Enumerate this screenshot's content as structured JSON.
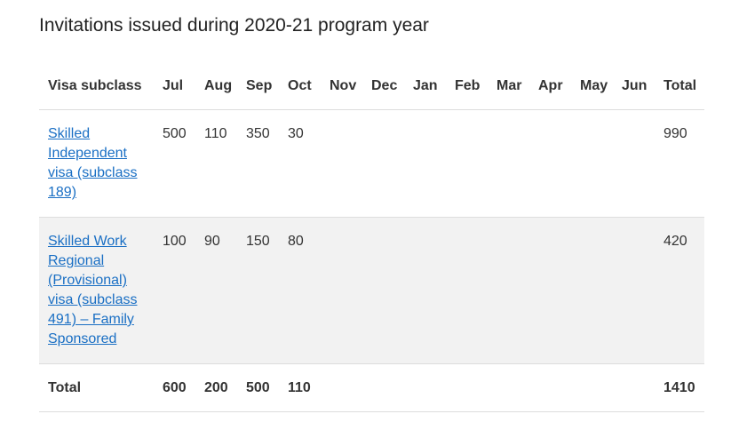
{
  "title": "Invitations issued during 2020-21 program year",
  "table": {
    "header": [
      "Visa subclass",
      "Jul",
      "Aug",
      "Sep",
      "Oct",
      "Nov",
      "Dec",
      "Jan",
      "Feb",
      "Mar",
      "Apr",
      "May",
      "Jun",
      "Total"
    ],
    "rows": [
      {
        "visa": "Skilled Independent visa (subclass 189)",
        "values": [
          500,
          110,
          350,
          30,
          null,
          null,
          null,
          null,
          null,
          null,
          null,
          null
        ],
        "total": 990
      },
      {
        "visa": "Skilled Work Regional (Provisional) visa (subclass 491) – Family Sponsored",
        "values": [
          100,
          90,
          150,
          80,
          null,
          null,
          null,
          null,
          null,
          null,
          null,
          null
        ],
        "total": 420
      }
    ],
    "total_row": {
      "label": "Total",
      "values": [
        600,
        200,
        500,
        110,
        null,
        null,
        null,
        null,
        null,
        null,
        null,
        null
      ],
      "total": 1410
    }
  }
}
